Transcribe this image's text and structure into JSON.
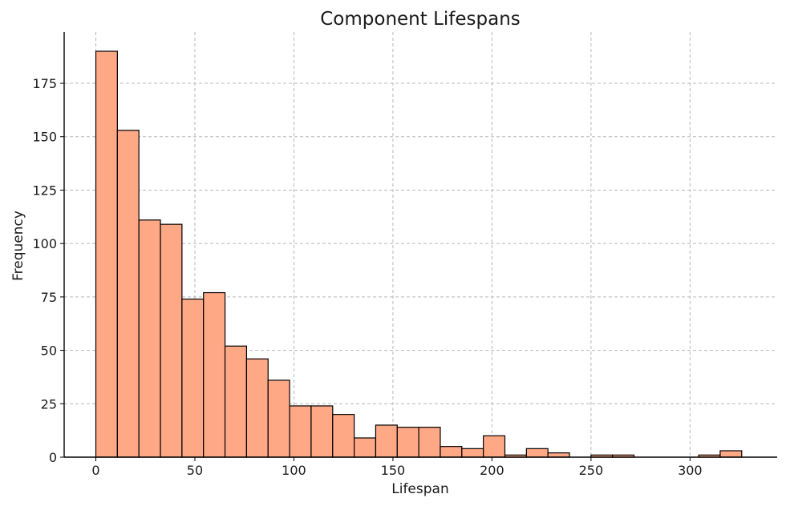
{
  "chart_data": {
    "type": "bar",
    "title": "Component Lifespans",
    "xlabel": "Lifespan",
    "ylabel": "Frequency",
    "xlim": [
      -16,
      344
    ],
    "ylim": [
      0,
      199
    ],
    "xticks": [
      0,
      50,
      100,
      150,
      200,
      250,
      300
    ],
    "yticks": [
      0,
      25,
      50,
      75,
      100,
      125,
      150,
      175
    ],
    "grid": true,
    "bar_color": "#ffa886",
    "bin_width": 10.87,
    "bin_starts": [
      0,
      10.87,
      21.74,
      32.61,
      43.48,
      54.35,
      65.22,
      76.09,
      86.96,
      97.83,
      108.7,
      119.57,
      130.43,
      141.3,
      152.17,
      163.04,
      173.91,
      184.78,
      195.65,
      206.52,
      217.39,
      228.26,
      239.13,
      250.0,
      260.87,
      271.74,
      282.61,
      293.48,
      304.35,
      315.22
    ],
    "values": [
      190,
      153,
      111,
      109,
      74,
      77,
      52,
      46,
      36,
      24,
      24,
      20,
      9,
      15,
      14,
      14,
      5,
      4,
      10,
      1,
      4,
      2,
      0,
      1,
      1,
      0,
      0,
      0,
      1,
      3
    ]
  }
}
